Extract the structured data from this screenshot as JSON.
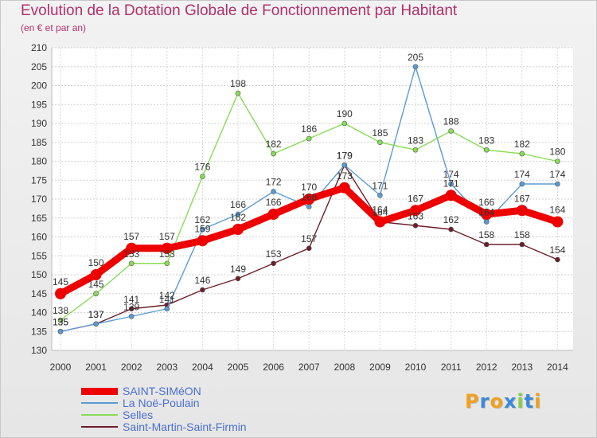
{
  "title": "Evolution de la Dotation Globale de Fonctionnement par Habitant",
  "subtitle": "(en € et par an)",
  "logo": "Proxiti",
  "chart_data": {
    "type": "line",
    "x": [
      "2000",
      "2001",
      "2002",
      "2003",
      "2004",
      "2005",
      "2006",
      "2007",
      "2008",
      "2009",
      "2010",
      "2011",
      "2012",
      "2013",
      "2014"
    ],
    "ylim": [
      130,
      210
    ],
    "yticks": [
      130,
      135,
      140,
      145,
      150,
      155,
      160,
      165,
      170,
      175,
      180,
      185,
      190,
      195,
      200,
      205,
      210
    ],
    "grid": true,
    "legend_position": "bottom-left",
    "series": [
      {
        "name": "SAINT-SIMéON",
        "color": "#ee0000",
        "values": [
          145,
          150,
          157,
          157,
          159,
          162,
          166,
          170,
          173,
          164,
          167,
          171,
          166,
          167,
          164
        ]
      },
      {
        "name": "La Noë-Poulain",
        "color": "#5b9bd5",
        "values": [
          135,
          137,
          139,
          141,
          162,
          166,
          172,
          168,
          179,
          171,
          205,
          174,
          164,
          174,
          174
        ]
      },
      {
        "name": "Selles",
        "color": "#88dd55",
        "values": [
          138,
          145,
          153,
          153,
          176,
          198,
          182,
          186,
          190,
          185,
          183,
          188,
          183,
          182,
          180
        ]
      },
      {
        "name": "Saint-Martin-Saint-Firmin",
        "color": "#6b1f2a",
        "values": [
          135,
          137,
          141,
          142,
          146,
          149,
          153,
          157,
          179,
          164,
          163,
          162,
          158,
          158,
          154
        ]
      }
    ]
  }
}
